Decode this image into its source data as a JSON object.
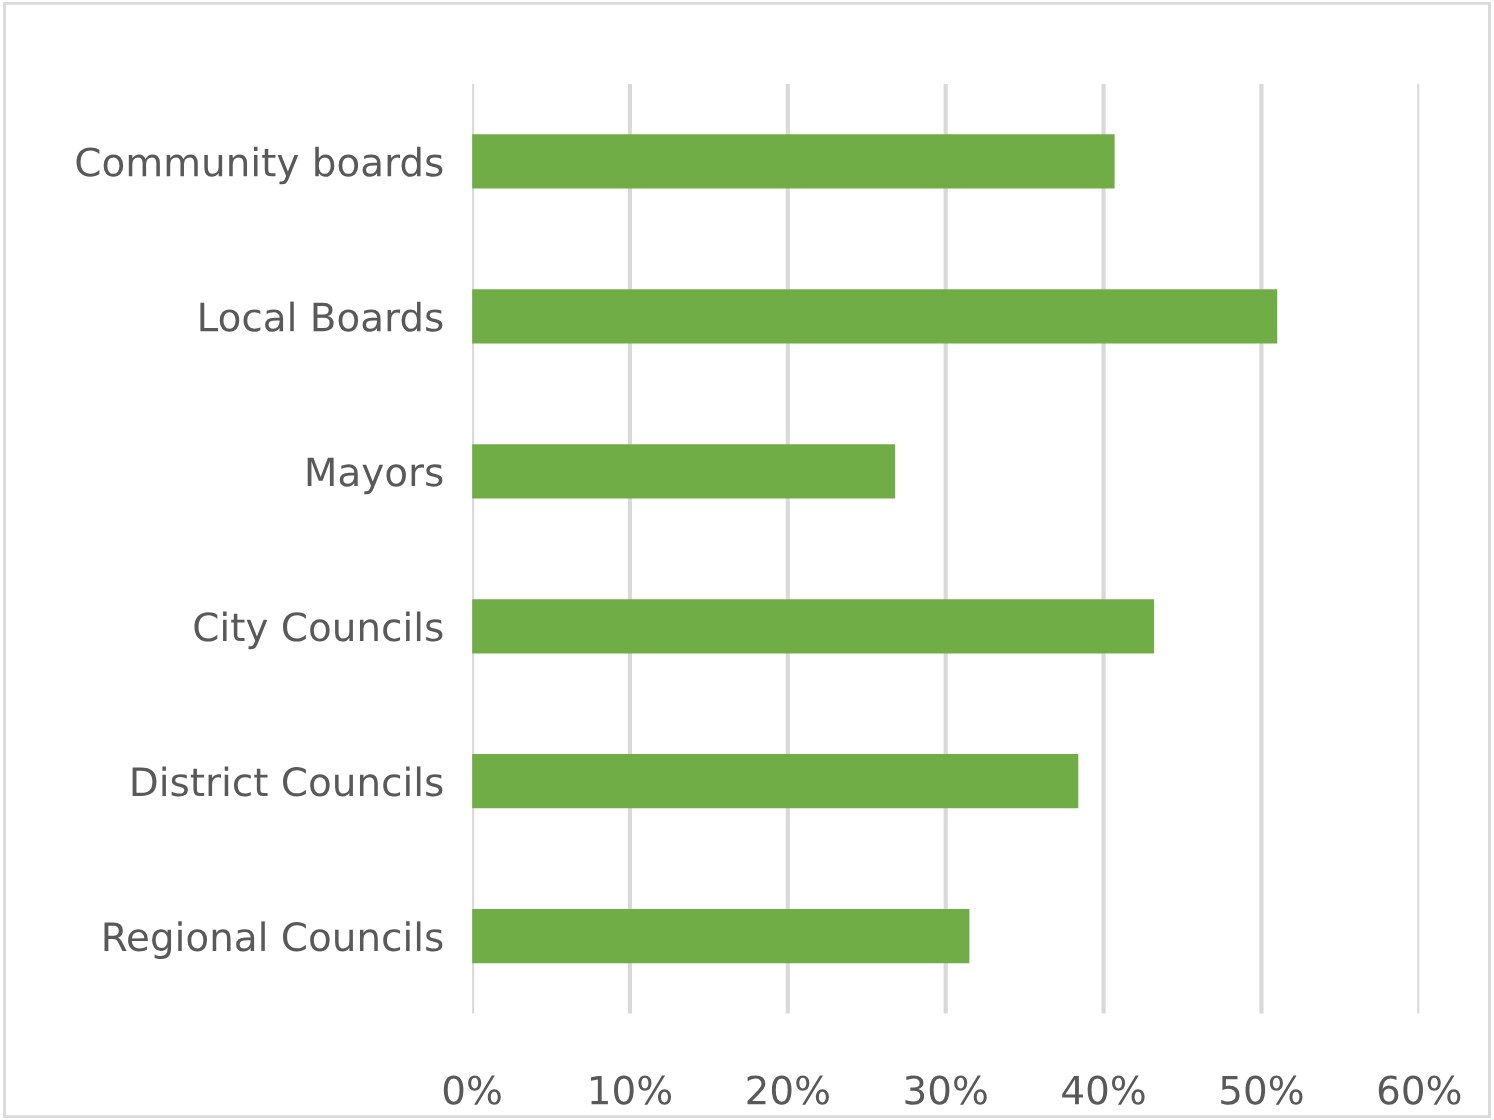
{
  "chart_data": {
    "type": "bar",
    "orientation": "horizontal",
    "categories": [
      "Community boards",
      "Local Boards",
      "Mayors",
      "City Councils",
      "District Councils",
      "Regional Councils"
    ],
    "values": [
      40.7,
      51.0,
      26.8,
      43.2,
      38.4,
      31.5
    ],
    "color": "#70ad47",
    "xlim": [
      0,
      60
    ],
    "xticks": [
      {
        "value": 0,
        "label": "0%"
      },
      {
        "value": 10,
        "label": "10%"
      },
      {
        "value": 20,
        "label": "20%"
      },
      {
        "value": 30,
        "label": "30%"
      },
      {
        "value": 40,
        "label": "40%"
      },
      {
        "value": 50,
        "label": "50%"
      },
      {
        "value": 60,
        "label": "60%"
      }
    ],
    "grid": "x",
    "legend": false
  }
}
